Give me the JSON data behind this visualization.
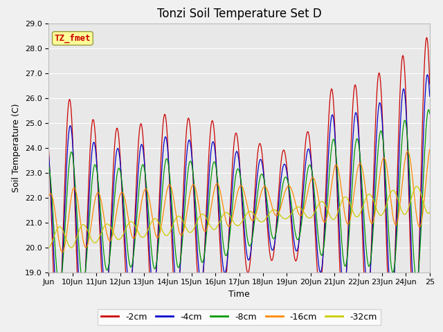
{
  "title": "Tonzi Soil Temperature Set D",
  "xlabel": "Time",
  "ylabel": "Soil Temperature (C)",
  "ylim": [
    19.0,
    29.0
  ],
  "yticks": [
    19.0,
    20.0,
    21.0,
    22.0,
    23.0,
    24.0,
    25.0,
    26.0,
    27.0,
    28.0,
    29.0
  ],
  "xtick_labels": [
    "Jun",
    "10Jun",
    "11Jun",
    "12Jun",
    "13Jun",
    "14Jun",
    "15Jun",
    "16Jun",
    "17Jun",
    "18Jun",
    "19Jun",
    "20Jun",
    "21Jun",
    "22Jun",
    "23Jun",
    "24Jun",
    "25"
  ],
  "colors": {
    "-2cm": "#cc0000",
    "-4cm": "#0000cc",
    "-8cm": "#009900",
    "-16cm": "#ff8800",
    "-32cm": "#cccc00"
  },
  "annotation_text": "TZ_fmet",
  "annotation_color": "#cc0000",
  "annotation_bg": "#ffff99",
  "annotation_border": "#999944",
  "title_fontsize": 12,
  "axis_fontsize": 9,
  "tick_fontsize": 8,
  "figsize": [
    6.4,
    4.8
  ],
  "dpi": 100
}
